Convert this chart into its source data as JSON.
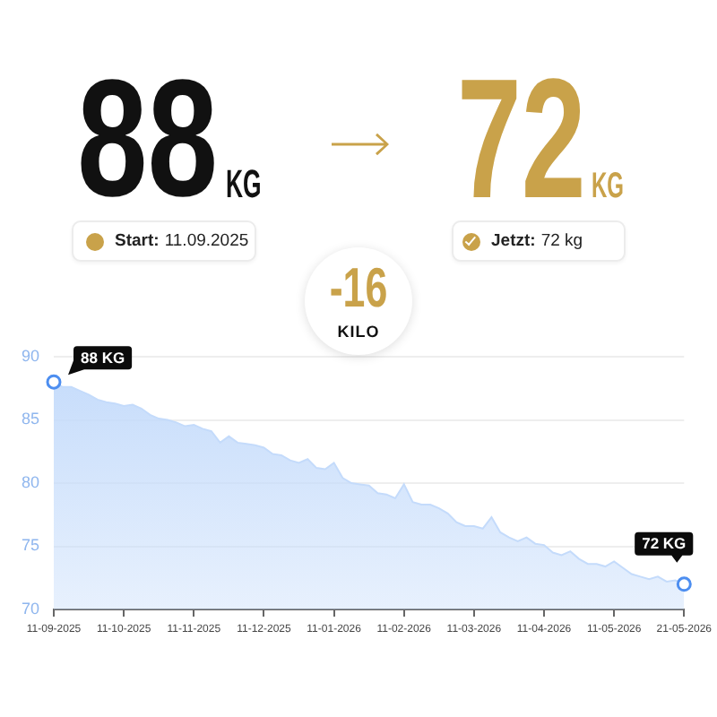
{
  "chart_data": {
    "type": "area",
    "categories": [
      "11-09-2025",
      null,
      null,
      null,
      null,
      null,
      null,
      null,
      "11-10-2025",
      null,
      null,
      null,
      null,
      null,
      null,
      null,
      "11-11-2025",
      null,
      null,
      null,
      null,
      null,
      null,
      null,
      "11-12-2025",
      null,
      null,
      null,
      null,
      null,
      null,
      null,
      "11-01-2026",
      null,
      null,
      null,
      null,
      null,
      null,
      null,
      "11-02-2026",
      null,
      null,
      null,
      null,
      null,
      null,
      null,
      "11-03-2026",
      null,
      null,
      null,
      null,
      null,
      null,
      null,
      "11-04-2026",
      null,
      null,
      null,
      null,
      null,
      null,
      null,
      "11-05-2026",
      null,
      null,
      null,
      null,
      null,
      null,
      null,
      "21-05-2026"
    ],
    "series": [
      {
        "color": "#c4dbfb",
        "values": [
          88.0,
          87.6,
          87.6,
          87.3,
          87.0,
          86.6,
          86.4,
          86.3,
          86.1,
          86.2,
          85.9,
          85.4,
          85.1,
          85.0,
          84.8,
          84.5,
          84.6,
          84.3,
          84.1,
          83.2,
          83.7,
          83.2,
          83.1,
          83.0,
          82.8,
          82.3,
          82.2,
          81.8,
          81.6,
          81.9,
          81.2,
          81.1,
          81.6,
          80.4,
          80.0,
          79.9,
          79.8,
          79.2,
          79.1,
          78.8,
          79.9,
          78.5,
          78.3,
          78.3,
          78.0,
          77.6,
          76.9,
          76.6,
          76.6,
          76.4,
          77.3,
          76.1,
          75.7,
          75.4,
          75.7,
          75.2,
          75.1,
          74.5,
          74.3,
          74.6,
          74.0,
          73.6,
          73.6,
          73.4,
          73.8,
          73.3,
          72.8,
          72.6,
          72.4,
          72.6,
          72.2,
          72.3,
          72.0
        ]
      },
      {
        "type": "scatter",
        "color": "#4d8ef0",
        "marker": "circle",
        "values": [
          88,
          null,
          null,
          null,
          null,
          null,
          null,
          null,
          null,
          null,
          null,
          null,
          null,
          null,
          null,
          null,
          null,
          null,
          null,
          null,
          null,
          null,
          null,
          null,
          null,
          null,
          null,
          null,
          null,
          null,
          null,
          null,
          null,
          null,
          null,
          null,
          null,
          null,
          null,
          null,
          null,
          null,
          null,
          null,
          null,
          null,
          null,
          null,
          null,
          null,
          null,
          null,
          null,
          null,
          null,
          null,
          null,
          null,
          null,
          null,
          null,
          null,
          null,
          null,
          null,
          null,
          null,
          null,
          null,
          null,
          null,
          null,
          72
        ],
        "value_labels": [
          "88 KG",
          null,
          null,
          null,
          null,
          null,
          null,
          null,
          null,
          null,
          null,
          null,
          null,
          null,
          null,
          null,
          null,
          null,
          null,
          null,
          null,
          null,
          null,
          null,
          null,
          null,
          null,
          null,
          null,
          null,
          null,
          null,
          null,
          null,
          null,
          null,
          null,
          null,
          null,
          null,
          null,
          null,
          null,
          null,
          null,
          null,
          null,
          null,
          null,
          null,
          null,
          null,
          null,
          null,
          null,
          null,
          null,
          null,
          null,
          null,
          null,
          null,
          null,
          null,
          null,
          null,
          null,
          null,
          null,
          null,
          null,
          null,
          "72 KG"
        ]
      }
    ],
    "ylim": [
      70,
      90
    ],
    "yticks": [
      70,
      75,
      80,
      85,
      90
    ],
    "grid": "y",
    "legend": false,
    "annotations": [
      "88",
      "KG",
      "72",
      "KG",
      "Start:",
      "11.09.2025",
      "Jetzt:",
      "72 kg",
      "-16",
      "KILO"
    ]
  }
}
